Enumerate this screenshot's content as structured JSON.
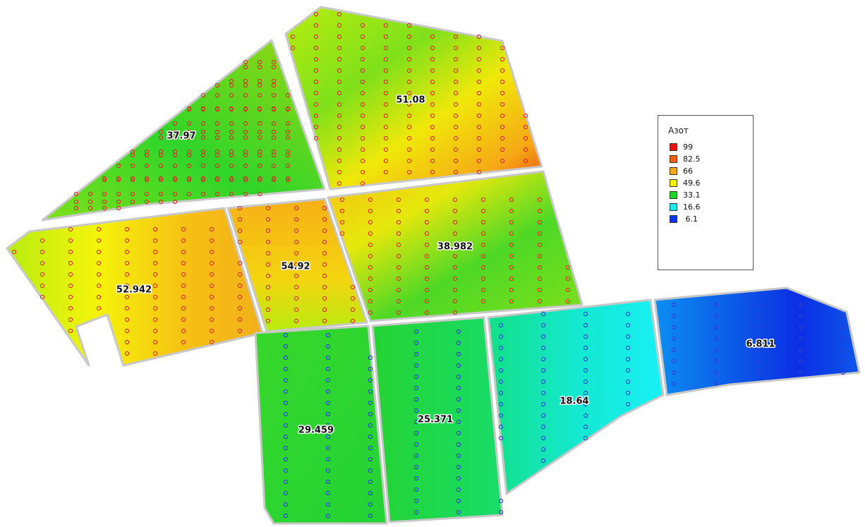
{
  "legend": {
    "title": "Азот",
    "items": [
      {
        "label": "99",
        "color": "#e8130c"
      },
      {
        "label": "82.5",
        "color": "#f06010"
      },
      {
        "label": "66",
        "color": "#f6a816"
      },
      {
        "label": "49.6",
        "color": "#f4f40a"
      },
      {
        "label": "33.1",
        "color": "#1fd52a"
      },
      {
        "label": "16.6",
        "color": "#18e8f0"
      },
      {
        "label": " 6.1",
        "color": "#0d35e8"
      }
    ]
  },
  "fields": [
    {
      "id": "f1",
      "value": "37.97",
      "level": 0.41
    },
    {
      "id": "f2",
      "value": "51.08",
      "level": 0.56
    },
    {
      "id": "f3",
      "value": "52.942",
      "level": 0.58
    },
    {
      "id": "f4",
      "value": "54.92",
      "level": 0.6
    },
    {
      "id": "f5",
      "value": "38.982",
      "level": 0.42
    },
    {
      "id": "f6",
      "value": "29.459",
      "level": 0.31
    },
    {
      "id": "f7",
      "value": "25.371",
      "level": 0.27
    },
    {
      "id": "f8",
      "value": "18.64",
      "level": 0.2
    },
    {
      "id": "f9",
      "value": "6.811",
      "level": 0.07
    }
  ],
  "sample_point_colors": {
    "high": "#dd2a2a",
    "low": "#2a3fd0"
  }
}
